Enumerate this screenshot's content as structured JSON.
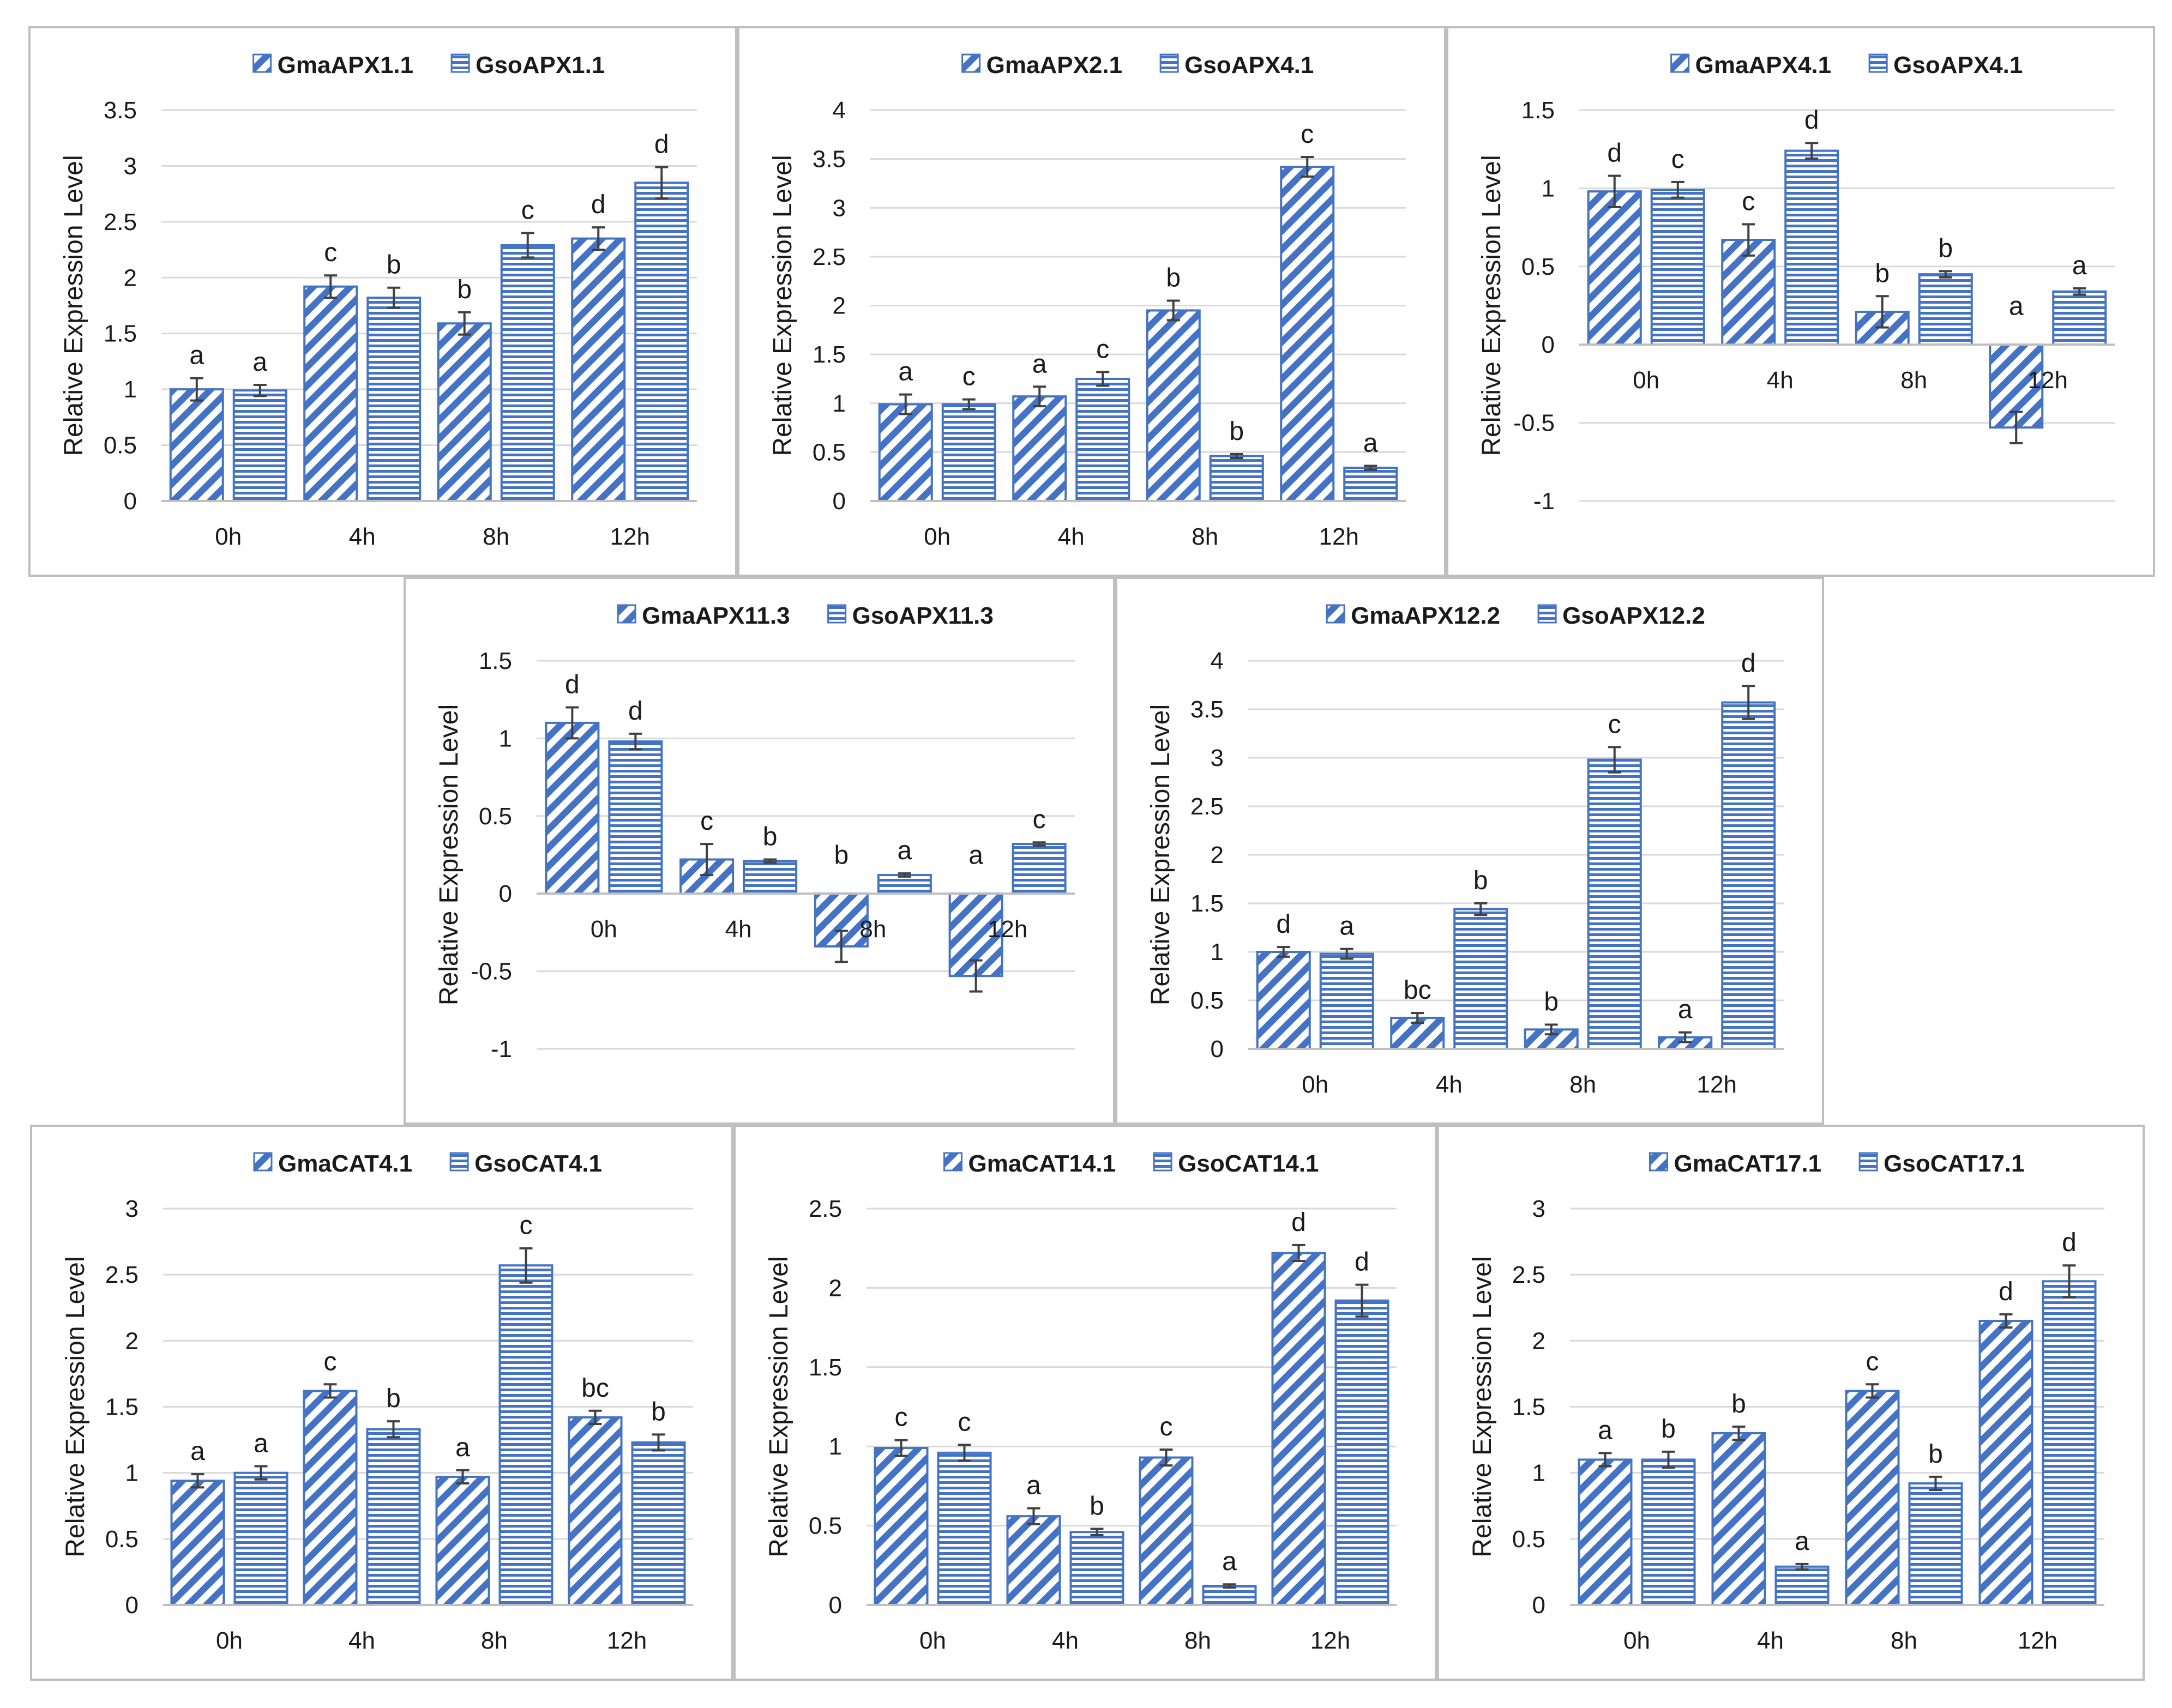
{
  "colors": {
    "bar": "#4472C4",
    "bar_fill": "#ffffff",
    "grid": "#d9d9d9",
    "error_bar": "#404040",
    "text": "#1a1a1a"
  },
  "chart_data": [
    {
      "id": "c1",
      "type": "bar",
      "categories": [
        "0h",
        "4h",
        "8h",
        "12h"
      ],
      "ylabel": "Relative Expression Level",
      "xlabel": "",
      "title": "",
      "ylim": [
        0,
        3.5
      ],
      "yticks": [
        0,
        0.5,
        1,
        1.5,
        2,
        2.5,
        3,
        3.5
      ],
      "ytick_labels": [
        "0",
        "0.5",
        "1",
        "1.5",
        "2",
        "2.5",
        "3",
        "3.5"
      ],
      "series": [
        {
          "name": "GmaAPX1.1",
          "pattern": "diagonal",
          "values": [
            1.0,
            1.92,
            1.59,
            2.35
          ],
          "errors": [
            0.1,
            0.1,
            0.1,
            0.1
          ],
          "letters": [
            "a",
            "c",
            "b",
            "d"
          ]
        },
        {
          "name": "GsoAPX1.1",
          "pattern": "horizontal",
          "values": [
            0.99,
            1.82,
            2.29,
            2.85
          ],
          "errors": [
            0.05,
            0.09,
            0.11,
            0.14
          ],
          "letters": [
            "a",
            "b",
            "c",
            "d"
          ]
        }
      ]
    },
    {
      "id": "c2",
      "type": "bar",
      "categories": [
        "0h",
        "4h",
        "8h",
        "12h"
      ],
      "ylabel": "Relative Expression Level",
      "xlabel": "",
      "title": "",
      "ylim": [
        0,
        4
      ],
      "yticks": [
        0,
        0.5,
        1,
        1.5,
        2,
        2.5,
        3,
        3.5,
        4
      ],
      "ytick_labels": [
        "0",
        "0.5",
        "1",
        "1.5",
        "2",
        "2.5",
        "3",
        "3.5",
        "4"
      ],
      "series": [
        {
          "name": "GmaAPX2.1",
          "pattern": "diagonal",
          "values": [
            0.99,
            1.07,
            1.95,
            3.42
          ],
          "errors": [
            0.1,
            0.1,
            0.1,
            0.1
          ],
          "letters": [
            "a",
            "a",
            "b",
            "c"
          ]
        },
        {
          "name": "GsoAPX4.1",
          "pattern": "horizontal",
          "values": [
            0.99,
            1.25,
            0.46,
            0.34
          ],
          "errors": [
            0.05,
            0.07,
            0.02,
            0.02
          ],
          "letters": [
            "c",
            "c",
            "b",
            "a"
          ]
        }
      ]
    },
    {
      "id": "c3",
      "type": "bar",
      "categories": [
        "0h",
        "4h",
        "8h",
        "12h"
      ],
      "ylabel": "Relative Expression Level",
      "xlabel": "",
      "title": "",
      "ylim": [
        -1,
        1.5
      ],
      "yticks": [
        -1,
        -0.5,
        0,
        0.5,
        1,
        1.5
      ],
      "ytick_labels": [
        "-1",
        "-0.5",
        "0",
        "0.5",
        "1",
        "1.5"
      ],
      "series": [
        {
          "name": "GmaAPX4.1",
          "pattern": "diagonal",
          "values": [
            0.98,
            0.67,
            0.21,
            -0.53
          ],
          "errors": [
            0.1,
            0.1,
            0.1,
            0.1
          ],
          "letters": [
            "d",
            "c",
            "b",
            "a"
          ]
        },
        {
          "name": "GsoAPX4.1",
          "pattern": "horizontal",
          "values": [
            0.99,
            1.24,
            0.45,
            0.34
          ],
          "errors": [
            0.05,
            0.05,
            0.02,
            0.02
          ],
          "letters": [
            "c",
            "d",
            "b",
            "a"
          ]
        }
      ]
    },
    {
      "id": "c4",
      "type": "bar",
      "categories": [
        "0h",
        "4h",
        "8h",
        "12h"
      ],
      "ylabel": "Relative Expression Level",
      "xlabel": "",
      "title": "",
      "ylim": [
        -1,
        1.5
      ],
      "yticks": [
        -1,
        -0.5,
        0,
        0.5,
        1,
        1.5
      ],
      "ytick_labels": [
        "-1",
        "-0.5",
        "0",
        "0.5",
        "1",
        "1.5"
      ],
      "series": [
        {
          "name": "GmaAPX11.3",
          "pattern": "diagonal",
          "values": [
            1.1,
            0.22,
            -0.34,
            -0.53
          ],
          "errors": [
            0.1,
            0.1,
            0.1,
            0.1
          ],
          "letters": [
            "d",
            "c",
            "b",
            "a"
          ]
        },
        {
          "name": "GsoAPX11.3",
          "pattern": "horizontal",
          "values": [
            0.98,
            0.21,
            0.12,
            0.32
          ],
          "errors": [
            0.05,
            0.01,
            0.01,
            0.01
          ],
          "letters": [
            "d",
            "b",
            "a",
            "c"
          ]
        }
      ]
    },
    {
      "id": "c5",
      "type": "bar",
      "categories": [
        "0h",
        "4h",
        "8h",
        "12h"
      ],
      "ylabel": "Relative Expression Level",
      "xlabel": "",
      "title": "",
      "ylim": [
        0,
        4
      ],
      "yticks": [
        0,
        0.5,
        1,
        1.5,
        2,
        2.5,
        3,
        3.5,
        4
      ],
      "ytick_labels": [
        "0",
        "0.5",
        "1",
        "1.5",
        "2",
        "2.5",
        "3",
        "3.5",
        "4"
      ],
      "series": [
        {
          "name": "GmaAPX12.2",
          "pattern": "diagonal",
          "values": [
            1.0,
            0.32,
            0.2,
            0.12
          ],
          "errors": [
            0.05,
            0.05,
            0.05,
            0.05
          ],
          "letters": [
            "d",
            "bc",
            "b",
            "a"
          ]
        },
        {
          "name": "GsoAPX12.2",
          "pattern": "horizontal",
          "values": [
            0.98,
            1.44,
            2.98,
            3.57
          ],
          "errors": [
            0.05,
            0.06,
            0.13,
            0.17
          ],
          "letters": [
            "a",
            "b",
            "c",
            "d"
          ]
        }
      ]
    },
    {
      "id": "c6",
      "type": "bar",
      "categories": [
        "0h",
        "4h",
        "8h",
        "12h"
      ],
      "ylabel": "Relative Expression Level",
      "xlabel": "",
      "title": "",
      "ylim": [
        0,
        3
      ],
      "yticks": [
        0,
        0.5,
        1,
        1.5,
        2,
        2.5,
        3
      ],
      "ytick_labels": [
        "0",
        "0.5",
        "1",
        "1.5",
        "2",
        "2.5",
        "3"
      ],
      "series": [
        {
          "name": "GmaCAT4.1",
          "pattern": "diagonal",
          "values": [
            0.94,
            1.62,
            0.97,
            1.42
          ],
          "errors": [
            0.05,
            0.05,
            0.05,
            0.05
          ],
          "letters": [
            "a",
            "c",
            "a",
            "bc"
          ]
        },
        {
          "name": "GsoCAT4.1",
          "pattern": "horizontal",
          "values": [
            1.0,
            1.33,
            2.57,
            1.23
          ],
          "errors": [
            0.05,
            0.06,
            0.13,
            0.06
          ],
          "letters": [
            "a",
            "b",
            "c",
            "b"
          ]
        }
      ]
    },
    {
      "id": "c7",
      "type": "bar",
      "categories": [
        "0h",
        "4h",
        "8h",
        "12h"
      ],
      "ylabel": "Relative Expression Level",
      "xlabel": "",
      "title": "",
      "ylim": [
        0,
        2.5
      ],
      "yticks": [
        0,
        0.5,
        1,
        1.5,
        2,
        2.5
      ],
      "ytick_labels": [
        "0",
        "0.5",
        "1",
        "1.5",
        "2",
        "2.5"
      ],
      "series": [
        {
          "name": "GmaCAT14.1",
          "pattern": "diagonal",
          "values": [
            0.99,
            0.56,
            0.93,
            2.22
          ],
          "errors": [
            0.05,
            0.05,
            0.05,
            0.05
          ],
          "letters": [
            "c",
            "a",
            "c",
            "d"
          ]
        },
        {
          "name": "GsoCAT14.1",
          "pattern": "horizontal",
          "values": [
            0.96,
            0.46,
            0.12,
            1.92
          ],
          "errors": [
            0.05,
            0.02,
            0.01,
            0.1
          ],
          "letters": [
            "c",
            "b",
            "a",
            "d"
          ]
        }
      ]
    },
    {
      "id": "c8",
      "type": "bar",
      "categories": [
        "0h",
        "4h",
        "8h",
        "12h"
      ],
      "ylabel": "Relative Expression Level",
      "xlabel": "",
      "title": "",
      "ylim": [
        0,
        3
      ],
      "yticks": [
        0,
        0.5,
        1,
        1.5,
        2,
        2.5,
        3
      ],
      "ytick_labels": [
        "0",
        "0.5",
        "1",
        "1.5",
        "2",
        "2.5",
        "3"
      ],
      "series": [
        {
          "name": "GmaCAT17.1",
          "pattern": "diagonal",
          "values": [
            1.1,
            1.3,
            1.62,
            2.15
          ],
          "errors": [
            0.05,
            0.05,
            0.05,
            0.05
          ],
          "letters": [
            "a",
            "b",
            "c",
            "d"
          ]
        },
        {
          "name": "GsoCAT17.1",
          "pattern": "horizontal",
          "values": [
            1.1,
            0.29,
            0.92,
            2.45
          ],
          "errors": [
            0.06,
            0.02,
            0.05,
            0.12
          ],
          "letters": [
            "b",
            "a",
            "b",
            "d"
          ]
        }
      ]
    }
  ]
}
